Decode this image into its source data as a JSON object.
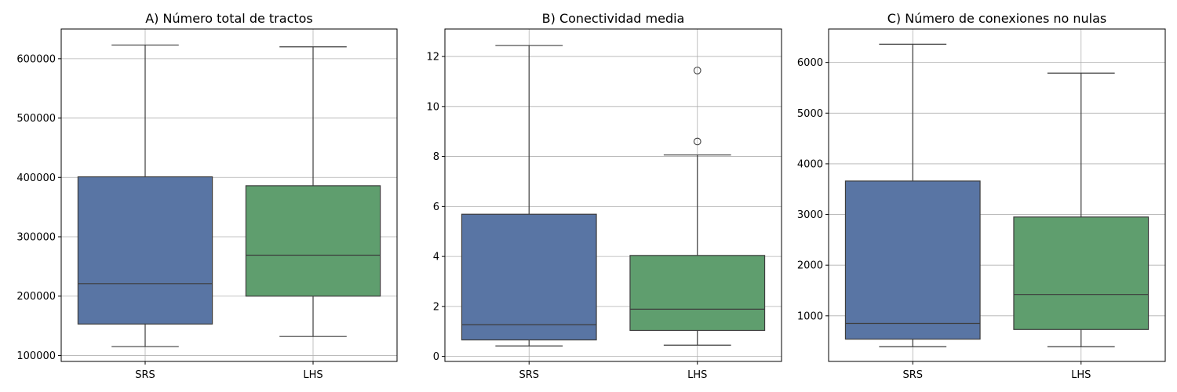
{
  "chart_data": [
    {
      "type": "box",
      "title": "A) Número total de tractos",
      "categories": [
        "SRS",
        "LHS"
      ],
      "ylim": [
        90000,
        650000
      ],
      "yticks": [
        100000,
        200000,
        300000,
        400000,
        500000,
        600000
      ],
      "ytick_labels": [
        "100000",
        "200000",
        "300000",
        "400000",
        "500000",
        "600000"
      ],
      "grid": true,
      "boxes": [
        {
          "category": "SRS",
          "whisker_low": 115000,
          "q1": 153000,
          "median": 221000,
          "q3": 401000,
          "whisker_high": 623000,
          "outliers": []
        },
        {
          "category": "LHS",
          "whisker_low": 132000,
          "q1": 200000,
          "median": 269000,
          "q3": 386000,
          "whisker_high": 620000,
          "outliers": []
        }
      ]
    },
    {
      "type": "box",
      "title": "B) Conectividad media",
      "categories": [
        "SRS",
        "LHS"
      ],
      "ylim": [
        -0.2,
        13.1
      ],
      "yticks": [
        0,
        2,
        4,
        6,
        8,
        10,
        12
      ],
      "ytick_labels": [
        "0",
        "2",
        "4",
        "6",
        "8",
        "10",
        "12"
      ],
      "grid": true,
      "boxes": [
        {
          "category": "SRS",
          "whisker_low": 0.42,
          "q1": 0.66,
          "median": 1.27,
          "q3": 5.69,
          "whisker_high": 12.44,
          "outliers": []
        },
        {
          "category": "LHS",
          "whisker_low": 0.45,
          "q1": 1.04,
          "median": 1.89,
          "q3": 4.04,
          "whisker_high": 8.06,
          "outliers": [
            8.6,
            11.44
          ]
        }
      ]
    },
    {
      "type": "box",
      "title": "C) Número de conexiones no nulas",
      "categories": [
        "SRS",
        "LHS"
      ],
      "ylim": [
        100,
        6660
      ],
      "yticks": [
        1000,
        2000,
        3000,
        4000,
        5000,
        6000
      ],
      "ytick_labels": [
        "1000",
        "2000",
        "3000",
        "4000",
        "5000",
        "6000"
      ],
      "grid": true,
      "boxes": [
        {
          "category": "SRS",
          "whisker_low": 390,
          "q1": 540,
          "median": 850,
          "q3": 3660,
          "whisker_high": 6360,
          "outliers": []
        },
        {
          "category": "LHS",
          "whisker_low": 390,
          "q1": 730,
          "median": 1420,
          "q3": 2950,
          "whisker_high": 5790,
          "outliers": []
        }
      ]
    }
  ],
  "colors": {
    "SRS": "#5975a4",
    "LHS": "#5f9e6e",
    "edge": "#3d3d3d",
    "grid": "#b0b0b0",
    "axes": "#000000"
  }
}
